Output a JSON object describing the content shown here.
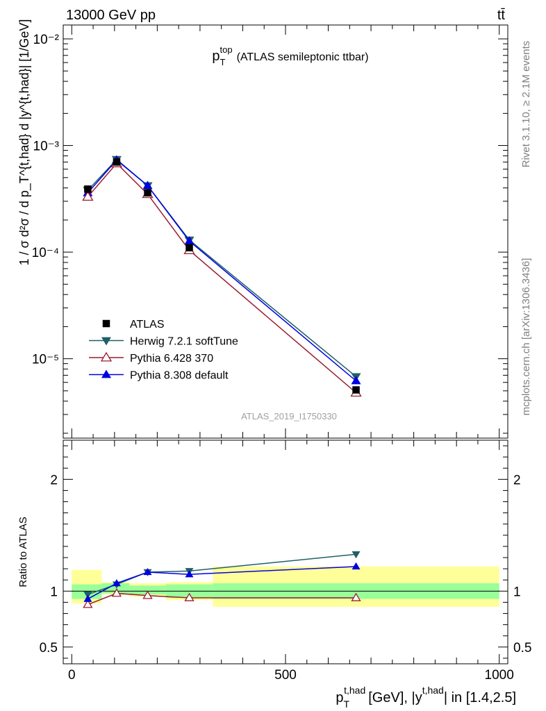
{
  "header": {
    "energy_label": "13000 GeV pp",
    "process_label": "tt̄"
  },
  "side_labels": {
    "rivet": "Rivet 3.1.10, ≥ 2.1M events",
    "mcplots": "mcplots.cern.ch [arXiv:1306.3436]"
  },
  "colors": {
    "atlas": "#000000",
    "herwig": "#1f5f67",
    "pythia6": "#9b1b2e",
    "pythia8": "#0000e0",
    "band_inner": "#99ff99",
    "band_outer": "#ffff99"
  },
  "chart_data": [
    {
      "type": "line",
      "title": "p_T^top (ATLAS semileptonic ttbar)",
      "title_parts": {
        "main": "p",
        "sub": "T",
        "sup": "top",
        "rest": "(ATLAS semileptonic ttbar)"
      },
      "ylabel": "1 / σ d²σ / d p_T^{t,had} d |y^{t,had}| [1/GeV]",
      "yscale": "log",
      "ylim": [
        1.8e-06,
        0.0135
      ],
      "xlim": [
        -20,
        1020
      ],
      "y_tick_labels": [
        "10⁻²",
        "10⁻³",
        "10⁻⁴",
        "10⁻⁵"
      ],
      "watermark": "ATLAS_2019_I1750330",
      "legend_position": "lower-left",
      "x": [
        37.5,
        105,
        177.5,
        275,
        665
      ],
      "bin_edges": [
        0,
        75,
        135,
        220,
        330,
        1000
      ],
      "series": [
        {
          "name": "ATLAS",
          "marker": "square",
          "values": [
            0.00039,
            0.0007,
            0.00036,
            0.00011,
            5.1e-06
          ]
        },
        {
          "name": "Herwig 7.2.1 softTune",
          "marker": "triangle-down",
          "values": [
            0.00038,
            0.00074,
            0.00042,
            0.00013,
            6.8e-06
          ]
        },
        {
          "name": "Pythia 6.428 370",
          "marker": "triangle-up-open",
          "values": [
            0.00033,
            0.00068,
            0.00035,
            0.000104,
            4.8e-06
          ]
        },
        {
          "name": "Pythia 8.308 default",
          "marker": "triangle-up",
          "values": [
            0.00036,
            0.00073,
            0.00042,
            0.000127,
            6.2e-06
          ]
        }
      ]
    },
    {
      "type": "line",
      "title": "",
      "ylabel": "Ratio to ATLAS",
      "xlabel": "p_T^{t,had} [GeV], |y^{t,had}| in [1.4,2.5]",
      "xlabel_parts": {
        "main": "p",
        "sub": "T",
        "sup": "t,had",
        "rest": "[GeV], |y",
        "sup2": "t,had",
        "rest2": "| in [1.4,2.5]"
      },
      "ylim": [
        0.35,
        2.35
      ],
      "xlim": [
        -20,
        1020
      ],
      "x_ticks": [
        0,
        500,
        1000
      ],
      "x_tick_labels": [
        "0",
        "500",
        "1000"
      ],
      "y_ticks": [
        0.5,
        1,
        2
      ],
      "y_tick_labels": [
        "0.5",
        "1",
        "2"
      ],
      "x": [
        37.5,
        105,
        177.5,
        275,
        665
      ],
      "band_bins": [
        {
          "x0": 0,
          "x1": 70,
          "inner": [
            0.93,
            1.06
          ],
          "outer": [
            0.89,
            1.19
          ]
        },
        {
          "x0": 70,
          "x1": 135,
          "inner": [
            0.98,
            1.07
          ],
          "outer": [
            0.97,
            1.08
          ]
        },
        {
          "x0": 135,
          "x1": 220,
          "inner": [
            0.97,
            1.05
          ],
          "outer": [
            0.95,
            1.07
          ]
        },
        {
          "x0": 220,
          "x1": 330,
          "inner": [
            0.94,
            1.06
          ],
          "outer": [
            0.92,
            1.08
          ]
        },
        {
          "x0": 330,
          "x1": 1000,
          "inner": [
            0.93,
            1.07
          ],
          "outer": [
            0.86,
            1.22
          ]
        }
      ],
      "series": [
        {
          "name": "Herwig 7.2.1 softTune",
          "marker": "triangle-down",
          "values": [
            0.97,
            1.06,
            1.17,
            1.18,
            1.33
          ]
        },
        {
          "name": "Pythia 6.428 370",
          "marker": "triangle-up-open",
          "values": [
            0.88,
            0.98,
            0.96,
            0.94,
            0.94
          ]
        },
        {
          "name": "Pythia 8.308 default",
          "marker": "triangle-up",
          "values": [
            0.93,
            1.07,
            1.17,
            1.15,
            1.22
          ]
        }
      ]
    }
  ]
}
